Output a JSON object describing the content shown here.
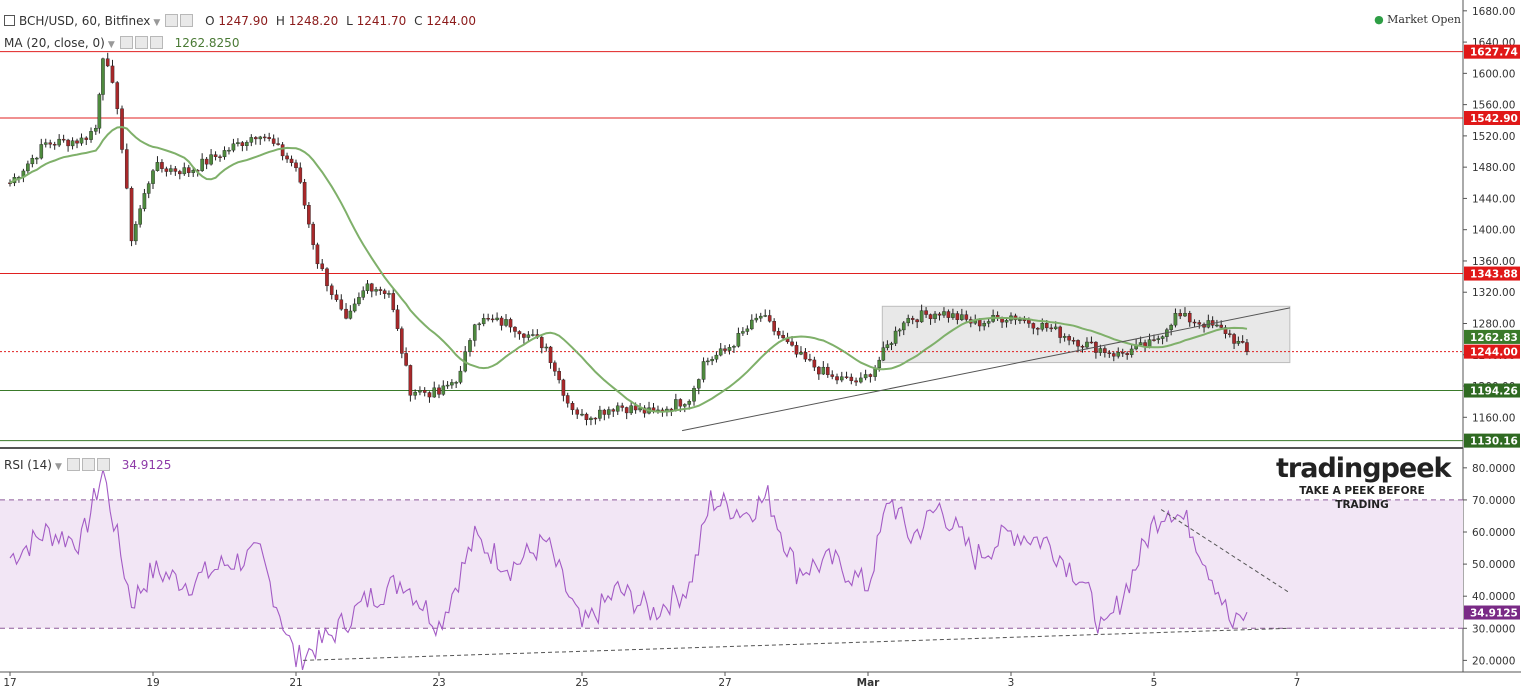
{
  "header": {
    "symbol": "BCH/USD, 60, Bitfinex",
    "o_label": "O",
    "o_value": "1247.90",
    "h_label": "H",
    "h_value": "1248.20",
    "l_label": "L",
    "l_value": "1241.70",
    "c_label": "C",
    "c_value": "1244.00",
    "ma_label": "MA (20, close, 0)",
    "ma_value": "1262.8250",
    "rsi_label": "RSI (14)",
    "rsi_value": "34.9125",
    "market_status": "Market Open"
  },
  "logo": {
    "brand": "tradingpeek",
    "tagline": "TAKE A PEEK BEFORE TRADING"
  },
  "colors": {
    "bull": "#4e8a3e",
    "bear": "#a8282a",
    "ma": "#7fb06a",
    "rsi": "#a35bc5",
    "resistance": "#e02020",
    "support": "#3a7a2a",
    "rsi_band": "#f2e6f5",
    "status": "#2e9e45"
  },
  "chart_data": [
    {
      "type": "candlestick",
      "title": "BCH/USD, 60, Bitfinex",
      "x_ticks": [
        "17",
        "19",
        "21",
        "23",
        "25",
        "27",
        "Mar",
        "3",
        "5",
        "7"
      ],
      "y_ticks": [
        1160,
        1200,
        1240,
        1280,
        1320,
        1360,
        1400,
        1440,
        1480,
        1520,
        1560,
        1600,
        1640,
        1680
      ],
      "y_tick_labels": [
        "1160.00",
        "1200.00",
        "1240.00",
        "1280.00",
        "1320.00",
        "1360.00",
        "1400.00",
        "1440.00",
        "1480.00",
        "1520.00",
        "1560.00",
        "1600.00",
        "1640.00",
        "1680.00"
      ],
      "ylim": [
        1122,
        1690
      ],
      "grid": false,
      "close_path": [
        [
          "17",
          1460
        ],
        [
          "17.5",
          1510
        ],
        [
          "18",
          1515
        ],
        [
          "18.2",
          1530
        ],
        [
          "18.3",
          1625
        ],
        [
          "18.5",
          1560
        ],
        [
          "18.7",
          1390
        ],
        [
          "19",
          1480
        ],
        [
          "19.5",
          1475
        ],
        [
          "20",
          1500
        ],
        [
          "20.5",
          1525
        ],
        [
          "21",
          1480
        ],
        [
          "21.3",
          1360
        ],
        [
          "21.7",
          1280
        ],
        [
          "22",
          1330
        ],
        [
          "22.3",
          1320
        ],
        [
          "22.6",
          1195
        ],
        [
          "23",
          1190
        ],
        [
          "23.3",
          1215
        ],
        [
          "23.5",
          1285
        ],
        [
          "24",
          1280
        ],
        [
          "24.5",
          1250
        ],
        [
          "24.8",
          1180
        ],
        [
          "25",
          1160
        ],
        [
          "25.5",
          1175
        ],
        [
          "26",
          1165
        ],
        [
          "26.5",
          1185
        ],
        [
          "26.7",
          1230
        ],
        [
          "27",
          1245
        ],
        [
          "27.5",
          1290
        ],
        [
          "28",
          1240
        ],
        [
          "28.5",
          1210
        ],
        [
          "28.9",
          1205
        ],
        [
          "Mar 1.1",
          1225
        ],
        [
          "Mar 1.5",
          1285
        ],
        [
          "2",
          1295
        ],
        [
          "2.5",
          1280
        ],
        [
          "3",
          1290
        ],
        [
          "3.5",
          1275
        ],
        [
          "4",
          1255
        ],
        [
          "4.5",
          1240
        ],
        [
          "5",
          1255
        ],
        [
          "5.3",
          1290
        ],
        [
          "5.7",
          1280
        ],
        [
          "6",
          1270
        ],
        [
          "6.3",
          1244
        ]
      ],
      "series": [
        {
          "name": "MA (20, close, 0)",
          "last": 1262.83
        }
      ],
      "horizontal_levels": [
        {
          "value": 1627.74,
          "label": "1627.74",
          "style": "resistance"
        },
        {
          "value": 1542.9,
          "label": "1542.90",
          "style": "resistance"
        },
        {
          "value": 1343.88,
          "label": "1343.88",
          "style": "resistance"
        },
        {
          "value": 1244.0,
          "label": "1244.00",
          "style": "last-price"
        },
        {
          "value": 1194.26,
          "label": "1194.26",
          "style": "support"
        },
        {
          "value": 1130.16,
          "label": "1130.16",
          "style": "support"
        }
      ],
      "price_labels": [
        {
          "value": 1262.83,
          "label": "1262.83",
          "style": "ma"
        }
      ],
      "drawings": {
        "trendline": [
          [
            "26.4",
            1143
          ],
          [
            "Mar 6.9",
            1300
          ]
        ],
        "range_box": {
          "x": [
            "Mar 1.2",
            "6.9"
          ],
          "y": [
            1230,
            1302
          ]
        }
      }
    },
    {
      "type": "line",
      "title": "RSI (14)",
      "y_ticks": [
        20,
        30,
        40,
        50,
        60,
        70,
        80
      ],
      "y_tick_labels": [
        "20.0000",
        "30.0000",
        "40.0000",
        "50.0000",
        "60.0000",
        "70.0000",
        "80.0000"
      ],
      "ylim": [
        17,
        84
      ],
      "band": [
        30,
        70
      ],
      "last_label": "34.9125",
      "values_path": [
        [
          "17",
          52
        ],
        [
          "17.5",
          60
        ],
        [
          "18",
          57
        ],
        [
          "18.3",
          79
        ],
        [
          "18.5",
          58
        ],
        [
          "18.7",
          38
        ],
        [
          "19",
          48
        ],
        [
          "19.5",
          44
        ],
        [
          "20",
          50
        ],
        [
          "20.5",
          53
        ],
        [
          "21",
          20
        ],
        [
          "21.5",
          28
        ],
        [
          "22",
          39
        ],
        [
          "22.5",
          45
        ],
        [
          "23",
          31
        ],
        [
          "23.5",
          58
        ],
        [
          "24",
          49
        ],
        [
          "24.5",
          57
        ],
        [
          "25",
          30
        ],
        [
          "25.5",
          42
        ],
        [
          "26",
          35
        ],
        [
          "26.5",
          43
        ],
        [
          "26.8",
          70
        ],
        [
          "27.3",
          66
        ],
        [
          "27.6",
          71
        ],
        [
          "28",
          48
        ],
        [
          "28.5",
          51
        ],
        [
          "29",
          43
        ],
        [
          "Mar 1.3",
          71
        ],
        [
          "1.6",
          58
        ],
        [
          "2",
          68
        ],
        [
          "2.5",
          52
        ],
        [
          "3",
          60
        ],
        [
          "3.5",
          57
        ],
        [
          "4",
          45
        ],
        [
          "4.3",
          28
        ],
        [
          "4.7",
          47
        ],
        [
          "5",
          63
        ],
        [
          "5.2",
          68
        ],
        [
          "5.5",
          62
        ],
        [
          "5.9",
          42
        ],
        [
          "6.1",
          30
        ],
        [
          "6.3",
          35
        ]
      ],
      "drawings": {
        "trend_bottom": [
          [
            "21.1",
            20
          ],
          [
            "Mar 6.9",
            30
          ]
        ],
        "trend_top": [
          [
            "Mar 5.1",
            67
          ],
          [
            "6.9",
            41
          ]
        ]
      }
    }
  ]
}
